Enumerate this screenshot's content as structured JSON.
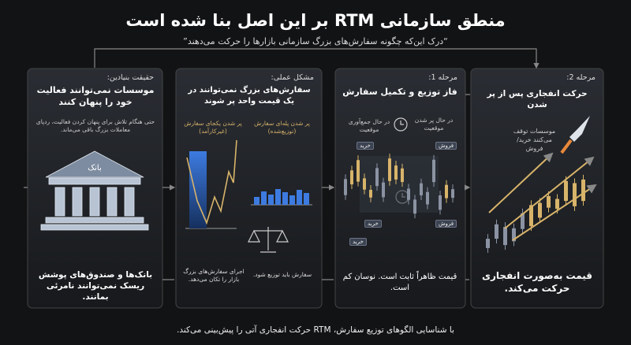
{
  "header": {
    "title": "منطق سازمانی RTM بر این اصل بنا شده است",
    "subtitle": "“درک این‌که چگونه سفارش‌های بزرگ سازمانی بازارها را حرکت می‌دهند”"
  },
  "panels": [
    {
      "label": "حقیقت بنیادین:",
      "heading": "موسسات نمی‌توانند فعالیت خود را پنهان کنند",
      "note": "حتی هنگام تلاش برای پنهان کردن فعالیت، ردپای معاملات بزرگ باقی می‌ماند.",
      "icon_label": "بانک",
      "footer": "بانک‌ها و صندوق‌های پوشش ریسک نمی‌توانند نامرئی بمانند."
    },
    {
      "label": "مشکل عملی:",
      "heading": "سفارش‌های بزرگ نمی‌توانند در یک قیمت واحد پر شوند",
      "chart_labels": [
        "پر شدن یکجای سفارش (غیرکارآمد)",
        "پر شدن پله‌ای سفارش (توزیع‌شده)"
      ],
      "footers": [
        "اجرای سفارش‌های بزرگ بازار را تکان می‌دهد.",
        "سفارش باید توزیع شود."
      ]
    },
    {
      "label": "مرحله 1:",
      "heading": "فاز توزیع و تکمیل سفارش",
      "chart_labels": [
        "در حال جمع‌آوری موقعیت",
        "در حال پر شدن موقعیت"
      ],
      "tags": [
        "خرید",
        "فروش",
        "خرید",
        "فروش",
        "خرید"
      ],
      "footer": "قیمت ظاهراً ثابت است. نوسان کم است."
    },
    {
      "label": "مرحله 2:",
      "heading": "حرکت انفجاری پس از پر شدن",
      "note": "موسسات توقف می‌کنند خرید/فروش",
      "footer": "قیمت به‌صورت انفجاری حرکت می‌کند."
    }
  ],
  "footer": "با شناسایی الگوهای توزیع سفارش، RTM حرکت انفجاری آتی را پیش‌بینی می‌کند."
}
